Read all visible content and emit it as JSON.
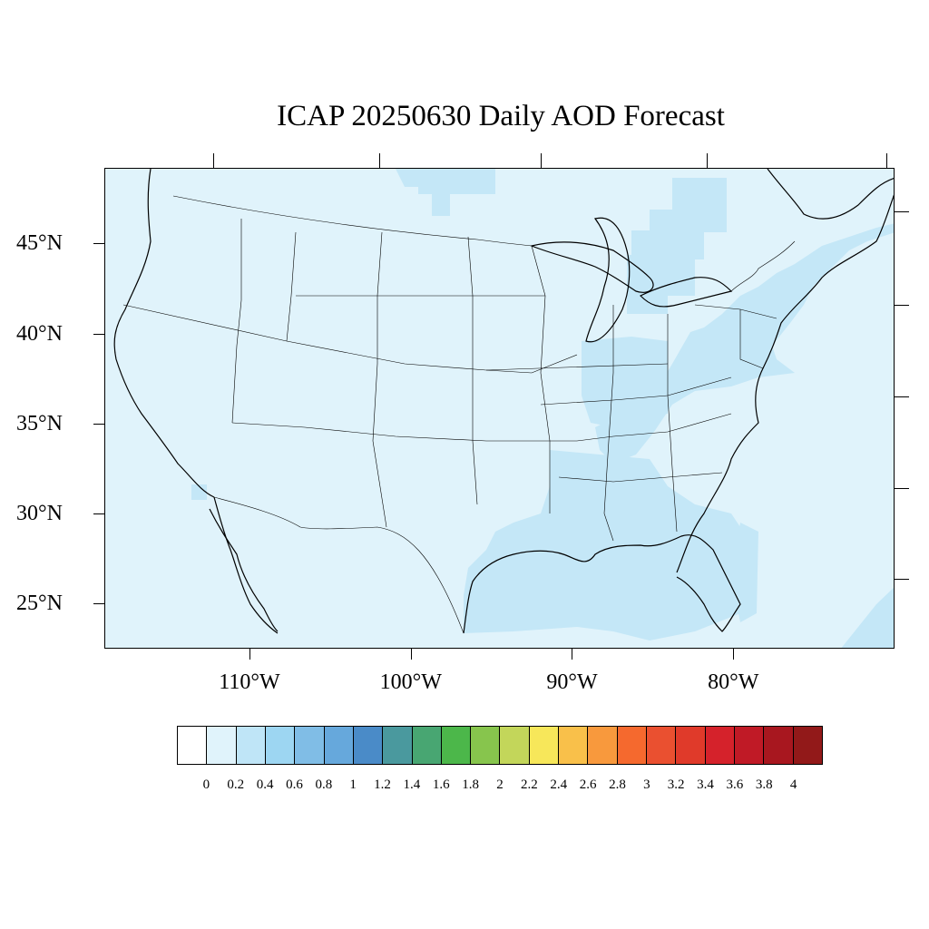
{
  "title": "ICAP 20250630 Daily AOD Forecast",
  "map": {
    "lon_range": [
      -119,
      -70
    ],
    "lat_range": [
      22.5,
      49.2
    ],
    "background_color": "#e0f3fb",
    "elevated_color": "#c4e7f7"
  },
  "lat_labels": [
    "45°N",
    "40°N",
    "35°N",
    "30°N",
    "25°N"
  ],
  "lat_values": [
    45,
    40,
    35,
    30,
    25
  ],
  "lon_labels": [
    "110°W",
    "100°W",
    "90°W",
    "80°W"
  ],
  "lon_values": [
    -110,
    -100,
    -90,
    -80
  ],
  "colorbar": {
    "colors": [
      "#ffffff",
      "#e0f3fb",
      "#bfe5f7",
      "#9dd6f2",
      "#80bde6",
      "#66a8dc",
      "#4a8bc8",
      "#4a999e",
      "#48a672",
      "#4cb74a",
      "#87c54d",
      "#c3d65a",
      "#f7e75a",
      "#f9c04a",
      "#f8993d",
      "#f5692e",
      "#ea5030",
      "#e03a2a",
      "#d5222b",
      "#c01a26",
      "#a8171f",
      "#921919"
    ],
    "labels": [
      "0",
      "0.2",
      "0.4",
      "0.6",
      "0.8",
      "1",
      "1.2",
      "1.4",
      "1.6",
      "1.8",
      "2",
      "2.2",
      "2.4",
      "2.6",
      "2.8",
      "3",
      "3.2",
      "3.4",
      "3.6",
      "3.8",
      "4"
    ]
  }
}
